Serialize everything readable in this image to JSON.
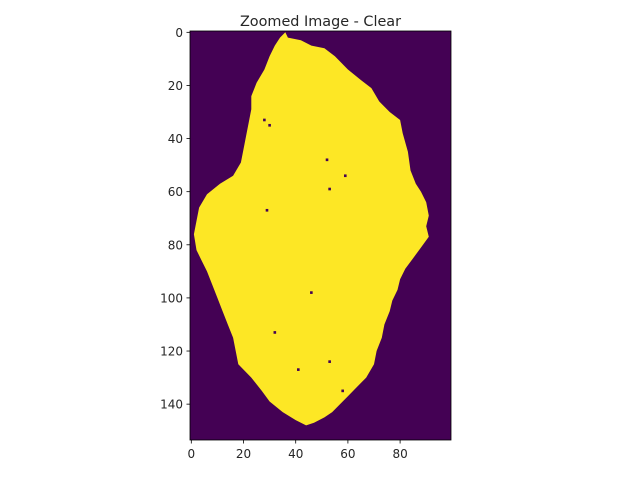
{
  "chart_data": {
    "type": "heatmap",
    "title": "Zoomed Image - Clear",
    "xlabel": "",
    "ylabel": "",
    "x_range": [
      0,
      99
    ],
    "y_range": [
      0,
      153
    ],
    "y_inverted": true,
    "x_ticks": [
      0,
      20,
      40,
      60,
      80
    ],
    "y_ticks": [
      0,
      20,
      40,
      60,
      80,
      100,
      120,
      140
    ],
    "grid": false,
    "colors": {
      "background": "#440154",
      "foreground": "#fde725"
    },
    "values_legend": {
      "background": 0,
      "foreground": 1
    },
    "foreground_boundary": [
      [
        36,
        0
      ],
      [
        37,
        2
      ],
      [
        42,
        3
      ],
      [
        46,
        5
      ],
      [
        51,
        6
      ],
      [
        55,
        9
      ],
      [
        60,
        14
      ],
      [
        65,
        18
      ],
      [
        69,
        21
      ],
      [
        72,
        26
      ],
      [
        76,
        30
      ],
      [
        80,
        33
      ],
      [
        81,
        38
      ],
      [
        83,
        45
      ],
      [
        84,
        52
      ],
      [
        86,
        57
      ],
      [
        88,
        60
      ],
      [
        90,
        64
      ],
      [
        91,
        69
      ],
      [
        90,
        73
      ],
      [
        91,
        77
      ],
      [
        88,
        81
      ],
      [
        85,
        85
      ],
      [
        82,
        89
      ],
      [
        80,
        93
      ],
      [
        79,
        97
      ],
      [
        77,
        101
      ],
      [
        76,
        105
      ],
      [
        74,
        110
      ],
      [
        73,
        115
      ],
      [
        71,
        120
      ],
      [
        70,
        125
      ],
      [
        67,
        130
      ],
      [
        63,
        134
      ],
      [
        60,
        137
      ],
      [
        57,
        140
      ],
      [
        54,
        143
      ],
      [
        51,
        145
      ],
      [
        47,
        147
      ],
      [
        44,
        148
      ],
      [
        40,
        146
      ],
      [
        35,
        143
      ],
      [
        30,
        139
      ],
      [
        27,
        135
      ],
      [
        23,
        130
      ],
      [
        18,
        125
      ],
      [
        17,
        120
      ],
      [
        16,
        115
      ],
      [
        14,
        110
      ],
      [
        12,
        105
      ],
      [
        10,
        100
      ],
      [
        8,
        95
      ],
      [
        6,
        90
      ],
      [
        4,
        86
      ],
      [
        2,
        82
      ],
      [
        1,
        76
      ],
      [
        2,
        71
      ],
      [
        3,
        66
      ],
      [
        6,
        61
      ],
      [
        11,
        57
      ],
      [
        16,
        54
      ],
      [
        19,
        49
      ],
      [
        20,
        44
      ],
      [
        21,
        39
      ],
      [
        22,
        34
      ],
      [
        23,
        29
      ],
      [
        23,
        24
      ],
      [
        25,
        19
      ],
      [
        28,
        14
      ],
      [
        30,
        9
      ],
      [
        32,
        5
      ],
      [
        34,
        2
      ]
    ],
    "holes": [
      [
        28,
        33
      ],
      [
        30,
        35
      ],
      [
        52,
        48
      ],
      [
        53,
        59
      ],
      [
        59,
        54
      ],
      [
        29,
        67
      ],
      [
        46,
        98
      ],
      [
        32,
        113
      ],
      [
        41,
        127
      ],
      [
        53,
        124
      ],
      [
        58,
        135
      ]
    ]
  }
}
